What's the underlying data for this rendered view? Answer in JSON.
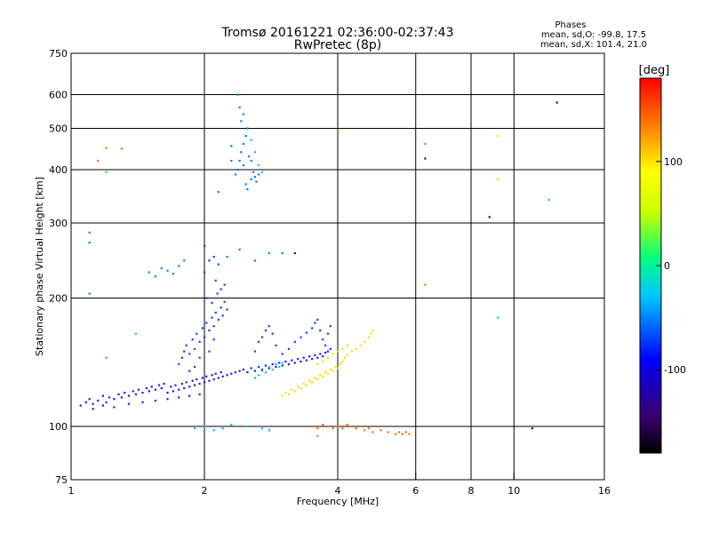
{
  "chart_data": {
    "type": "scatter",
    "title": "Tromsø 20161221 02:36:00-02:37:43",
    "subtitle": "RwPretec (8p)",
    "xlabel": "Frequency [MHz]",
    "ylabel": "Stationary phase Virtual Height [km]",
    "x_scale": "log",
    "y_scale": "log",
    "xlim": [
      1,
      16
    ],
    "ylim": [
      75,
      750
    ],
    "x_ticks": [
      1,
      2,
      4,
      6,
      8,
      10,
      16
    ],
    "y_ticks": [
      75,
      100,
      200,
      300,
      400,
      500,
      600,
      750
    ],
    "x_gridlines": [
      2,
      4,
      6,
      8,
      10
    ],
    "y_gridlines": [
      100,
      200,
      300,
      400,
      500,
      600
    ],
    "grid": true,
    "stats": {
      "title": "Phases",
      "line1": "mean, sd,O: -99.8, 17.5",
      "line2": "mean, sd,X: 101.4, 21.0"
    },
    "colorbar": {
      "label": "[deg]",
      "range": [
        -180,
        180
      ],
      "ticks": [
        100,
        0,
        -100
      ],
      "tick_labels": [
        "100",
        "0",
        "-100"
      ],
      "colors": [
        "#000000",
        "#3a0070",
        "#0000ff",
        "#00c8ff",
        "#00ff80",
        "#c8ff00",
        "#ffff00",
        "#ff8c00",
        "#ff0000"
      ]
    },
    "series": [
      {
        "phase": -110,
        "color": "#2020e0",
        "points": [
          [
            1.05,
            112
          ],
          [
            1.08,
            114
          ],
          [
            1.1,
            116
          ],
          [
            1.12,
            113
          ],
          [
            1.15,
            115
          ],
          [
            1.18,
            118
          ],
          [
            1.2,
            114
          ],
          [
            1.22,
            117
          ],
          [
            1.25,
            116
          ],
          [
            1.28,
            119
          ],
          [
            1.3,
            117
          ],
          [
            1.32,
            120
          ],
          [
            1.35,
            118
          ],
          [
            1.38,
            121
          ],
          [
            1.4,
            119
          ],
          [
            1.42,
            122
          ],
          [
            1.45,
            120
          ],
          [
            1.48,
            123
          ],
          [
            1.5,
            121
          ],
          [
            1.52,
            124
          ],
          [
            1.55,
            122
          ],
          [
            1.58,
            125
          ],
          [
            1.6,
            123
          ],
          [
            1.62,
            126
          ],
          [
            1.65,
            120
          ],
          [
            1.68,
            124
          ],
          [
            1.7,
            121
          ],
          [
            1.72,
            125
          ],
          [
            1.75,
            122
          ],
          [
            1.78,
            126
          ],
          [
            1.8,
            123
          ],
          [
            1.82,
            127
          ],
          [
            1.85,
            124
          ],
          [
            1.88,
            128
          ],
          [
            1.9,
            125
          ],
          [
            1.92,
            129
          ],
          [
            1.95,
            126
          ],
          [
            1.98,
            130
          ],
          [
            2.0,
            127
          ],
          [
            2.02,
            131
          ],
          [
            2.05,
            128
          ],
          [
            2.08,
            132
          ],
          [
            2.1,
            129
          ],
          [
            2.12,
            133
          ],
          [
            2.15,
            130
          ],
          [
            2.18,
            134
          ],
          [
            2.2,
            131
          ],
          [
            2.25,
            132
          ],
          [
            2.3,
            133
          ],
          [
            2.35,
            134
          ],
          [
            2.4,
            135
          ],
          [
            2.45,
            136
          ],
          [
            2.5,
            134
          ],
          [
            2.55,
            137
          ],
          [
            2.6,
            135
          ],
          [
            2.65,
            138
          ],
          [
            2.7,
            136
          ],
          [
            2.75,
            139
          ],
          [
            2.8,
            137
          ],
          [
            2.85,
            140
          ],
          [
            2.9,
            138
          ],
          [
            2.95,
            141
          ],
          [
            3.0,
            139
          ],
          [
            3.05,
            142
          ],
          [
            3.1,
            140
          ],
          [
            3.15,
            143
          ],
          [
            3.2,
            141
          ],
          [
            3.25,
            144
          ],
          [
            3.3,
            142
          ],
          [
            3.35,
            145
          ],
          [
            3.4,
            143
          ],
          [
            3.45,
            146
          ],
          [
            3.5,
            144
          ],
          [
            3.55,
            147
          ],
          [
            3.6,
            145
          ],
          [
            3.65,
            148
          ],
          [
            3.7,
            146
          ],
          [
            3.75,
            149
          ],
          [
            3.8,
            150
          ],
          [
            3.85,
            152
          ],
          [
            1.12,
            110
          ],
          [
            1.18,
            112
          ],
          [
            1.25,
            111
          ],
          [
            1.35,
            113
          ],
          [
            1.45,
            114
          ],
          [
            1.55,
            115
          ],
          [
            1.65,
            116
          ],
          [
            1.75,
            117
          ],
          [
            1.85,
            118
          ],
          [
            1.95,
            119
          ]
        ]
      },
      {
        "phase": -95,
        "color": "#1040ff",
        "points": [
          [
            1.75,
            140
          ],
          [
            1.78,
            145
          ],
          [
            1.8,
            150
          ],
          [
            1.82,
            155
          ],
          [
            1.85,
            148
          ],
          [
            1.88,
            160
          ],
          [
            1.9,
            152
          ],
          [
            1.92,
            165
          ],
          [
            1.95,
            158
          ],
          [
            1.98,
            170
          ],
          [
            2.0,
            162
          ],
          [
            2.02,
            175
          ],
          [
            2.05,
            168
          ],
          [
            2.08,
            180
          ],
          [
            2.1,
            172
          ],
          [
            2.12,
            185
          ],
          [
            2.15,
            178
          ],
          [
            2.18,
            190
          ],
          [
            2.2,
            182
          ],
          [
            2.22,
            196
          ],
          [
            2.25,
            188
          ],
          [
            2.0,
            230
          ],
          [
            2.05,
            245
          ],
          [
            2.1,
            250
          ],
          [
            2.15,
            240
          ],
          [
            2.12,
            220
          ],
          [
            2.18,
            210
          ],
          [
            2.0,
            265
          ],
          [
            2.02,
            200
          ],
          [
            2.08,
            195
          ],
          [
            2.14,
            205
          ],
          [
            2.22,
            215
          ],
          [
            2.1,
            160
          ],
          [
            2.05,
            150
          ],
          [
            1.95,
            145
          ],
          [
            1.9,
            138
          ],
          [
            1.85,
            135
          ],
          [
            2.6,
            150
          ],
          [
            2.65,
            158
          ],
          [
            2.7,
            162
          ],
          [
            2.75,
            168
          ],
          [
            2.8,
            172
          ],
          [
            2.85,
            165
          ],
          [
            2.9,
            155
          ],
          [
            3.0,
            148
          ],
          [
            3.1,
            152
          ],
          [
            3.2,
            158
          ],
          [
            3.3,
            162
          ],
          [
            3.4,
            166
          ],
          [
            3.5,
            170
          ],
          [
            3.55,
            175
          ],
          [
            3.6,
            178
          ],
          [
            3.65,
            168
          ],
          [
            3.7,
            160
          ],
          [
            3.75,
            155
          ],
          [
            3.8,
            165
          ],
          [
            3.85,
            172
          ]
        ]
      },
      {
        "phase": -80,
        "color": "#0080ff",
        "points": [
          [
            2.35,
            390
          ],
          [
            2.38,
            400
          ],
          [
            2.4,
            420
          ],
          [
            2.42,
            440
          ],
          [
            2.45,
            460
          ],
          [
            2.48,
            480
          ],
          [
            2.5,
            500
          ],
          [
            2.42,
            520
          ],
          [
            2.4,
            560
          ],
          [
            2.38,
            600
          ],
          [
            2.45,
            410
          ],
          [
            2.52,
            430
          ],
          [
            2.55,
            380
          ],
          [
            2.58,
            395
          ],
          [
            2.6,
            385
          ],
          [
            2.62,
            375
          ],
          [
            2.65,
            390
          ],
          [
            2.48,
            370
          ],
          [
            2.5,
            360
          ],
          [
            2.55,
            420
          ],
          [
            2.45,
            540
          ],
          [
            1.1,
            270
          ],
          [
            1.1,
            285
          ],
          [
            1.1,
            205
          ],
          [
            2.15,
            355
          ],
          [
            2.3,
            455
          ],
          [
            2.3,
            420
          ],
          [
            3.0,
            255
          ],
          [
            1.5,
            230
          ],
          [
            1.55,
            225
          ],
          [
            1.6,
            235
          ],
          [
            1.65,
            232
          ],
          [
            1.7,
            228
          ],
          [
            1.75,
            238
          ],
          [
            1.8,
            245
          ],
          [
            2.25,
            250
          ],
          [
            2.4,
            260
          ],
          [
            2.8,
            255
          ],
          [
            2.6,
            245
          ]
        ]
      },
      {
        "phase": -60,
        "color": "#00c0ff",
        "points": [
          [
            2.6,
            130
          ],
          [
            2.65,
            132
          ],
          [
            2.7,
            135
          ],
          [
            2.75,
            134
          ],
          [
            2.8,
            138
          ],
          [
            2.85,
            136
          ],
          [
            2.9,
            140
          ],
          [
            2.95,
            138
          ],
          [
            3.0,
            141
          ],
          [
            1.9,
            99
          ],
          [
            2.0,
            100
          ],
          [
            2.1,
            98
          ],
          [
            2.2,
            99
          ],
          [
            2.3,
            101
          ],
          [
            2.5,
            100
          ],
          [
            2.7,
            99
          ],
          [
            2.8,
            98
          ],
          [
            12.0,
            340
          ],
          [
            6.3,
            460
          ],
          [
            9.2,
            180
          ],
          [
            2.55,
            470
          ],
          [
            2.6,
            440
          ],
          [
            2.7,
            395
          ],
          [
            2.65,
            410
          ]
        ]
      },
      {
        "phase": 100,
        "color": "#f0e000",
        "points": [
          [
            3.0,
            118
          ],
          [
            3.05,
            120
          ],
          [
            3.1,
            119
          ],
          [
            3.15,
            122
          ],
          [
            3.2,
            121
          ],
          [
            3.25,
            124
          ],
          [
            3.3,
            123
          ],
          [
            3.35,
            126
          ],
          [
            3.4,
            125
          ],
          [
            3.45,
            128
          ],
          [
            3.5,
            127
          ],
          [
            3.55,
            130
          ],
          [
            3.6,
            129
          ],
          [
            3.65,
            132
          ],
          [
            3.7,
            131
          ],
          [
            3.75,
            134
          ],
          [
            3.8,
            133
          ],
          [
            3.85,
            136
          ],
          [
            3.9,
            135
          ],
          [
            3.95,
            138
          ],
          [
            4.0,
            137
          ],
          [
            4.05,
            140
          ],
          [
            4.1,
            142
          ],
          [
            4.15,
            145
          ],
          [
            4.2,
            147
          ],
          [
            4.3,
            150
          ],
          [
            4.4,
            152
          ],
          [
            4.5,
            155
          ],
          [
            4.6,
            158
          ],
          [
            4.7,
            162
          ],
          [
            4.75,
            165
          ],
          [
            4.8,
            168
          ],
          [
            3.6,
            140
          ],
          [
            3.7,
            142
          ],
          [
            3.8,
            145
          ],
          [
            3.9,
            148
          ],
          [
            4.0,
            150
          ],
          [
            4.1,
            152
          ],
          [
            4.2,
            155
          ],
          [
            9.2,
            480
          ],
          [
            9.2,
            380
          ]
        ]
      },
      {
        "phase": 150,
        "color": "#ff7000",
        "points": [
          [
            3.5,
            100
          ],
          [
            3.6,
            99
          ],
          [
            3.7,
            101
          ],
          [
            3.8,
            100
          ],
          [
            3.9,
            99
          ],
          [
            4.0,
            100
          ],
          [
            4.1,
            99
          ],
          [
            4.2,
            101
          ],
          [
            4.3,
            100
          ],
          [
            4.4,
            99
          ],
          [
            4.5,
            100
          ],
          [
            4.6,
            98
          ],
          [
            4.7,
            99
          ],
          [
            4.8,
            97
          ],
          [
            5.0,
            98
          ],
          [
            5.2,
            97
          ],
          [
            5.4,
            96
          ],
          [
            5.5,
            97
          ],
          [
            5.6,
            96
          ],
          [
            5.7,
            97
          ],
          [
            5.8,
            96
          ],
          [
            1.2,
            450
          ],
          [
            1.3,
            448
          ],
          [
            1.15,
            420
          ],
          [
            4.0,
            495
          ],
          [
            6.3,
            215
          ],
          [
            1.2,
            145
          ]
        ]
      },
      {
        "phase": 30,
        "color": "#20e060",
        "points": [
          [
            1.4,
            165
          ],
          [
            3.6,
            95
          ],
          [
            1.2,
            395
          ]
        ]
      },
      {
        "phase": -120,
        "color": "#1010a0",
        "points": [
          [
            6.3,
            425
          ],
          [
            8.8,
            310
          ],
          [
            11.0,
            99
          ],
          [
            12.5,
            575
          ],
          [
            3.2,
            255
          ]
        ]
      }
    ]
  }
}
